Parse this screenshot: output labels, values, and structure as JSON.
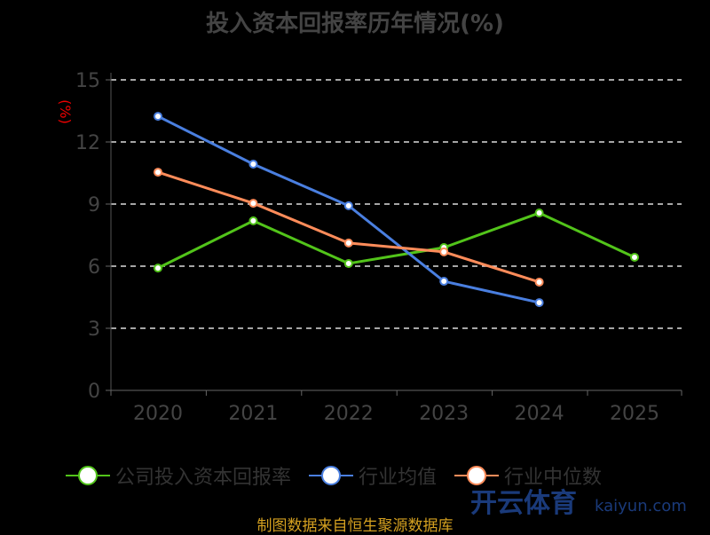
{
  "chart_data": {
    "type": "line",
    "title": "投入资本回报率历年情况(%)",
    "ylabel": "(%)",
    "xlabel": "",
    "categories": [
      "2020",
      "2021",
      "2022",
      "2023",
      "2024",
      "2025"
    ],
    "ylim": [
      0,
      15
    ],
    "yticks": [
      0,
      3,
      6,
      9,
      12,
      15
    ],
    "grid": true,
    "legend_position": "bottom",
    "series": [
      {
        "name": "公司投入资本回报率",
        "color": "#52c41a",
        "values": [
          5.91,
          8.19,
          6.13,
          6.9,
          8.57,
          6.43
        ]
      },
      {
        "name": "行业均值",
        "color": "#4a7fe0",
        "values": [
          13.24,
          10.93,
          8.92,
          5.27,
          4.24,
          null
        ]
      },
      {
        "name": "行业中位数",
        "color": "#ff8c5a",
        "values": [
          10.54,
          9.04,
          7.12,
          6.69,
          5.23,
          null
        ]
      }
    ]
  },
  "source": "制图数据来自恒生聚源数据库",
  "watermark": {
    "text": "开云体育",
    "url_text": "kaiyun.com"
  }
}
